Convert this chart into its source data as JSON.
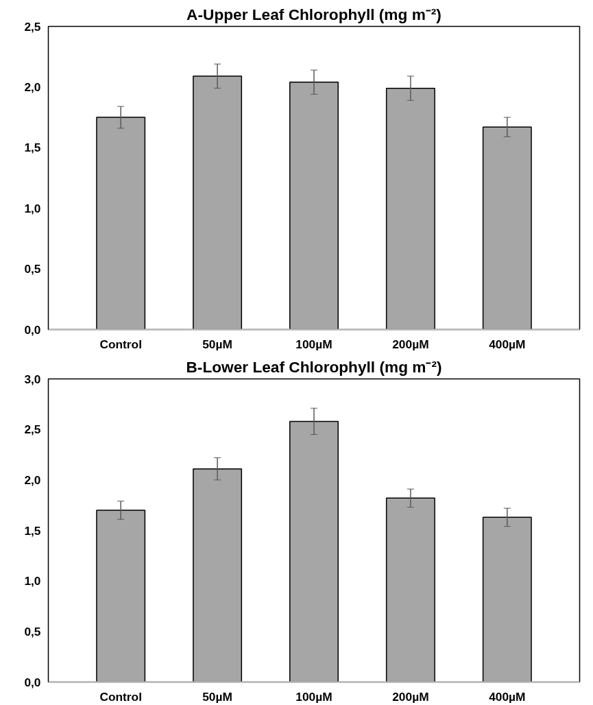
{
  "chart_data": [
    {
      "type": "bar",
      "title": "A-Upper Leaf Chlorophyll (mg m⁻²)",
      "categories": [
        "Control",
        "50µM",
        "100µM",
        "200µM",
        "400µM"
      ],
      "values": [
        1.75,
        2.09,
        2.04,
        1.99,
        1.67
      ],
      "errors": [
        0.09,
        0.1,
        0.1,
        0.1,
        0.08
      ],
      "color": "#a6a6a6",
      "ylim": [
        0,
        2.5
      ],
      "yticks": [
        {
          "value": 0,
          "label": "0,0"
        },
        {
          "value": 0.5,
          "label": "0,5"
        },
        {
          "value": 1,
          "label": "1,0"
        },
        {
          "value": 1.5,
          "label": "1,5"
        },
        {
          "value": 2,
          "label": "2,0"
        },
        {
          "value": 2.5,
          "label": "2,5"
        }
      ],
      "grid": false
    },
    {
      "type": "bar",
      "title": "B-Lower Leaf Chlorophyll (mg m⁻²)",
      "categories": [
        "Control",
        "50µM",
        "100µM",
        "200µM",
        "400µM"
      ],
      "values": [
        1.7,
        2.11,
        2.58,
        1.82,
        1.63
      ],
      "errors": [
        0.09,
        0.11,
        0.13,
        0.09,
        0.09
      ],
      "color": "#a6a6a6",
      "ylim": [
        0,
        3
      ],
      "yticks": [
        {
          "value": 0,
          "label": "0,0"
        },
        {
          "value": 0.5,
          "label": "0,5"
        },
        {
          "value": 1,
          "label": "1,0"
        },
        {
          "value": 1.5,
          "label": "1,5"
        },
        {
          "value": 2,
          "label": "2,0"
        },
        {
          "value": 2.5,
          "label": "2,5"
        },
        {
          "value": 3,
          "label": "3,0"
        }
      ],
      "grid": false
    }
  ]
}
